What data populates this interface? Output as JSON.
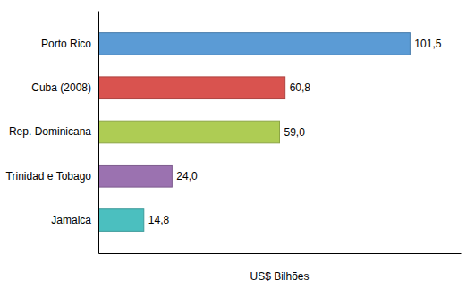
{
  "chart_data": {
    "type": "bar",
    "orientation": "horizontal",
    "categories": [
      "Porto Rico",
      "Cuba (2008)",
      "Rep. Dominicana",
      "Trinidad e Tobago",
      "Jamaica"
    ],
    "values": [
      101.5,
      60.8,
      59.0,
      24.0,
      14.8
    ],
    "value_labels": [
      "101,5",
      "60,8",
      "59,0",
      "24,0",
      "14,8"
    ],
    "colors": [
      "#5B9BD5",
      "#D9534F",
      "#AECC54",
      "#9B72B0",
      "#4BBFBF"
    ],
    "xlabel": "US$ Bilhões",
    "xlim": [
      0,
      118
    ],
    "data_labels": true,
    "tick_labels": "y"
  }
}
